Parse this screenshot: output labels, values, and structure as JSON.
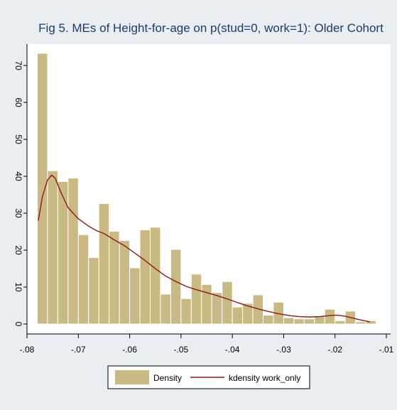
{
  "chart_data": {
    "type": "bar",
    "title": "Fig 5. MEs of Height-for-age on p(stud=0, work=1): Older Cohort",
    "xlabel": "",
    "ylabel": "",
    "xlim": [
      -0.08,
      -0.01
    ],
    "ylim": [
      0,
      75
    ],
    "x_ticks": [
      -0.08,
      -0.07,
      -0.06,
      -0.05,
      -0.04,
      -0.03,
      -0.02,
      -0.01
    ],
    "x_tick_labels": [
      "-.08",
      "-.07",
      "-.06",
      "-.05",
      "-.04",
      "-.03",
      "-.02",
      "-.01"
    ],
    "y_ticks": [
      0,
      10,
      20,
      30,
      40,
      50,
      60,
      70
    ],
    "y_tick_labels": [
      "0",
      "10",
      "20",
      "30",
      "40",
      "50",
      "60",
      "70"
    ],
    "grid": false,
    "legend_position": "bottom",
    "histogram": {
      "name": "Density",
      "color": "#c8ba82",
      "edge_color": "#ffffff",
      "bin_start": -0.078,
      "bin_width": 0.002,
      "values": [
        73.3,
        41.5,
        38.6,
        39.5,
        24.2,
        18.0,
        32.6,
        25.1,
        22.6,
        15.2,
        25.5,
        26.2,
        8.1,
        20.2,
        6.9,
        13.5,
        10.7,
        8.5,
        11.5,
        4.6,
        5.6,
        7.9,
        2.4,
        5.9,
        1.7,
        1.4,
        1.4,
        2.1,
        4.0,
        0.9,
        3.5,
        0.6,
        0.9
      ]
    },
    "kdensity": {
      "name": "kdensity work_only",
      "color": "#8b1a1a",
      "points": [
        [
          -0.0778,
          28
        ],
        [
          -0.077,
          34.5
        ],
        [
          -0.076,
          39
        ],
        [
          -0.0752,
          40.3
        ],
        [
          -0.0745,
          39.5
        ],
        [
          -0.0735,
          36
        ],
        [
          -0.072,
          31.5
        ],
        [
          -0.07,
          28.5
        ],
        [
          -0.068,
          26.5
        ],
        [
          -0.0665,
          25.3
        ],
        [
          -0.065,
          24.5
        ],
        [
          -0.063,
          22.8
        ],
        [
          -0.061,
          21.2
        ],
        [
          -0.059,
          19.2
        ],
        [
          -0.057,
          17.2
        ],
        [
          -0.055,
          15.0
        ],
        [
          -0.053,
          13.0
        ],
        [
          -0.051,
          11.5
        ],
        [
          -0.049,
          10.2
        ],
        [
          -0.047,
          9.3
        ],
        [
          -0.045,
          8.5
        ],
        [
          -0.043,
          7.7
        ],
        [
          -0.041,
          6.8
        ],
        [
          -0.039,
          5.8
        ],
        [
          -0.037,
          4.9
        ],
        [
          -0.035,
          4.1
        ],
        [
          -0.033,
          3.4
        ],
        [
          -0.031,
          2.8
        ],
        [
          -0.029,
          2.3
        ],
        [
          -0.027,
          2.0
        ],
        [
          -0.025,
          1.9
        ],
        [
          -0.023,
          2.0
        ],
        [
          -0.021,
          2.3
        ],
        [
          -0.0195,
          2.4
        ],
        [
          -0.018,
          2.1
        ],
        [
          -0.0165,
          1.6
        ],
        [
          -0.015,
          1.1
        ],
        [
          -0.014,
          0.8
        ],
        [
          -0.0132,
          0.6
        ]
      ]
    }
  }
}
